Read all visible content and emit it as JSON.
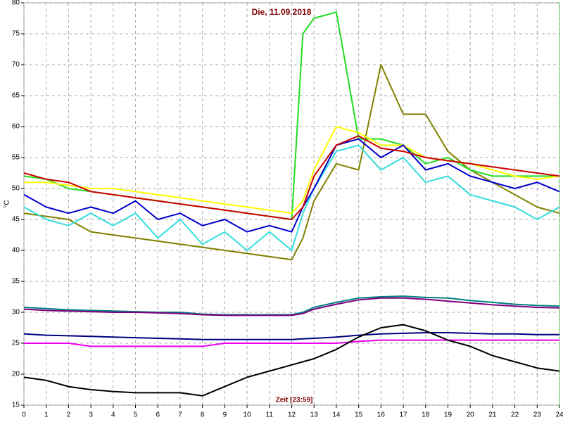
{
  "chart_data": {
    "type": "line",
    "title": "Die, 11.09.2018",
    "ylabel": "°C",
    "xlabel": "Zeit [23:59]",
    "x": [
      0,
      1,
      2,
      3,
      4,
      5,
      6,
      7,
      8,
      9,
      10,
      11,
      12,
      12.5,
      13,
      14,
      15,
      16,
      17,
      18,
      19,
      20,
      21,
      22,
      23,
      24
    ],
    "xlim": [
      0,
      24
    ],
    "xticks": [
      0,
      1,
      2,
      3,
      4,
      5,
      6,
      7,
      8,
      9,
      10,
      11,
      12,
      13,
      14,
      15,
      16,
      17,
      18,
      19,
      20,
      21,
      22,
      23,
      24
    ],
    "ylim": [
      15,
      80
    ],
    "yticks": [
      15,
      20,
      25,
      30,
      35,
      40,
      45,
      50,
      55,
      60,
      65,
      70,
      75,
      80
    ],
    "grid": true,
    "series": [
      {
        "color": "#808000",
        "values": [
          46,
          45.5,
          45,
          43,
          42.5,
          42,
          41.5,
          41,
          40.5,
          40,
          39.5,
          39,
          38.5,
          42,
          48,
          54,
          53,
          70,
          62,
          62,
          56,
          53,
          51,
          49,
          47,
          46
        ]
      },
      {
        "color": "#22dd22",
        "values": [
          52,
          51.5,
          50,
          49.5,
          49,
          48.5,
          48,
          47.5,
          47,
          46.5,
          46,
          45.5,
          45,
          75,
          77.5,
          78.5,
          58,
          58,
          57,
          54,
          55,
          53,
          52,
          52,
          52,
          52
        ]
      },
      {
        "color": "#ffff00",
        "values": [
          51,
          51,
          50.5,
          50,
          50,
          49.5,
          49,
          48.5,
          48,
          47.5,
          47,
          46.5,
          46,
          48,
          53,
          60,
          59,
          57,
          57,
          55,
          54.5,
          54,
          53,
          52,
          51.5,
          52
        ]
      },
      {
        "color": "#33dddd",
        "values": [
          47,
          45,
          44,
          46,
          44,
          46,
          42,
          45,
          41,
          43,
          40,
          43,
          40,
          46,
          50,
          56,
          57,
          53,
          55,
          51,
          52,
          49,
          48,
          47,
          45,
          47
        ]
      },
      {
        "color": "#0000cc",
        "values": [
          49,
          47,
          46,
          47,
          46,
          48,
          45,
          46,
          44,
          45,
          43,
          44,
          43,
          47,
          50,
          57,
          58,
          55,
          57,
          53,
          54,
          52,
          51,
          50,
          51,
          49.5
        ]
      },
      {
        "color": "#cc0000",
        "values": [
          52.5,
          51.5,
          51,
          49.5,
          49,
          48.5,
          48,
          47.5,
          47,
          46.5,
          46,
          45.5,
          45,
          47,
          52,
          57,
          58.5,
          56.5,
          56,
          55,
          54.5,
          54,
          53.5,
          53,
          52.5,
          52
        ]
      },
      {
        "color": "#008080",
        "values": [
          30.8,
          30.6,
          30.4,
          30.3,
          30.2,
          30.1,
          30,
          30,
          29.7,
          29.6,
          29.6,
          29.6,
          29.6,
          30,
          30.8,
          31.6,
          32.3,
          32.5,
          32.6,
          32.4,
          32.3,
          31.9,
          31.6,
          31.3,
          31.1,
          31
        ]
      },
      {
        "color": "#800080",
        "values": [
          30.5,
          30.3,
          30.2,
          30.1,
          30,
          30,
          29.9,
          29.8,
          29.6,
          29.5,
          29.5,
          29.5,
          29.5,
          29.8,
          30.5,
          31.3,
          32,
          32.3,
          32.3,
          32.1,
          31.8,
          31.5,
          31.2,
          31,
          30.8,
          30.7
        ]
      },
      {
        "color": "#000080",
        "values": [
          26.5,
          26.3,
          26.2,
          26.1,
          26,
          25.9,
          25.8,
          25.7,
          25.6,
          25.6,
          25.6,
          25.6,
          25.6,
          25.7,
          25.8,
          26,
          26.3,
          26.5,
          26.6,
          26.7,
          26.7,
          26.6,
          26.5,
          26.5,
          26.4,
          26.4
        ]
      },
      {
        "color": "#ee00ee",
        "values": [
          25,
          25,
          25,
          24.5,
          24.5,
          24.5,
          24.5,
          24.5,
          24.5,
          25,
          25,
          25,
          25,
          25,
          25,
          25,
          25.3,
          25.5,
          25.5,
          25.5,
          25.5,
          25.5,
          25.5,
          25.5,
          25.5,
          25.5
        ]
      },
      {
        "color": "#000000",
        "values": [
          19.5,
          19,
          18,
          17.5,
          17.2,
          17,
          17,
          17,
          16.5,
          18,
          19.5,
          20.5,
          21.5,
          22,
          22.5,
          24,
          26,
          27.5,
          28,
          27,
          25.5,
          24.5,
          23,
          22,
          21,
          20.5
        ]
      }
    ]
  }
}
